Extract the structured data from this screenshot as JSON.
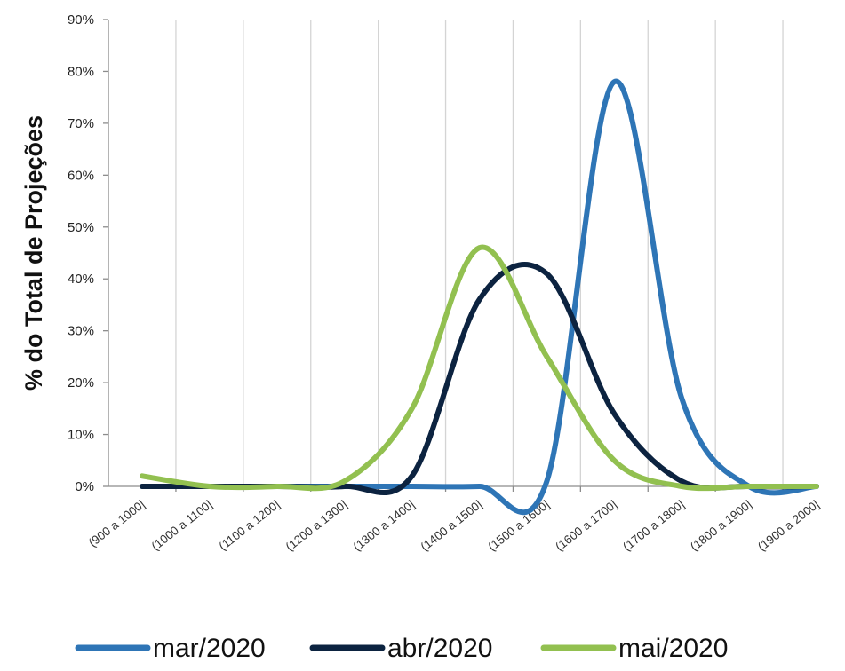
{
  "chart_data": {
    "type": "line",
    "title": "",
    "xlabel": "",
    "ylabel": "% do Total de Projeções",
    "categories": [
      "(900 a 1000]",
      "(1000 a 1100]",
      "(1100 a 1200]",
      "(1200 a 1300]",
      "(1300 a 1400]",
      "(1400 a 1500]",
      "(1500 a 1600]",
      "(1600 a 1700]",
      "(1700 a 1800]",
      "(1800 a 1900]",
      "(1900 a 2000]"
    ],
    "yticks": [
      "0%",
      "10%",
      "20%",
      "30%",
      "40%",
      "50%",
      "60%",
      "70%",
      "80%",
      "90%"
    ],
    "ylim": [
      0,
      90
    ],
    "grid": "vertical",
    "legend_position": "bottom",
    "series": [
      {
        "name": "mar/2020",
        "color": "#2e75b6",
        "values": [
          0,
          0,
          0,
          0,
          0,
          0,
          1,
          78,
          17,
          0,
          0
        ]
      },
      {
        "name": "abr/2020",
        "color": "#0c2340",
        "values": [
          0,
          0,
          0,
          0,
          2,
          36,
          41,
          14,
          1,
          0,
          0
        ]
      },
      {
        "name": "mai/2020",
        "color": "#92c050",
        "values": [
          2,
          0,
          0,
          1,
          15,
          46,
          25,
          5,
          0,
          0,
          0
        ]
      }
    ]
  }
}
